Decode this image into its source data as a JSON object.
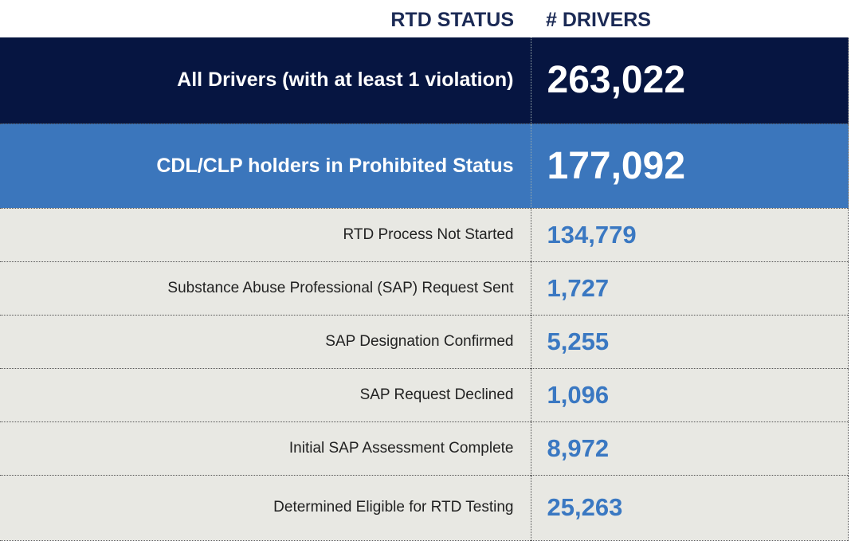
{
  "headers": {
    "status": "RTD STATUS",
    "drivers": "# DRIVERS"
  },
  "rows": [
    {
      "status": "All Drivers (with at least 1 violation)",
      "drivers": "263,022"
    },
    {
      "status": "CDL/CLP holders in Prohibited Status",
      "drivers": "177,092"
    },
    {
      "status": "RTD Process Not Started",
      "drivers": "134,779"
    },
    {
      "status": "Substance Abuse Professional (SAP) Request Sent",
      "drivers": "1,727"
    },
    {
      "status": "SAP Designation Confirmed",
      "drivers": "5,255"
    },
    {
      "status": "SAP Request Declined",
      "drivers": "1,096"
    },
    {
      "status": "Initial SAP Assessment Complete",
      "drivers": "8,972"
    },
    {
      "status": "Determined Eligible for RTD Testing",
      "drivers": "25,263"
    }
  ],
  "colors": {
    "navy": "#061541",
    "blue": "#3b76bc",
    "row_bg": "#e8e8e3",
    "number_blue": "#3a78c2"
  }
}
